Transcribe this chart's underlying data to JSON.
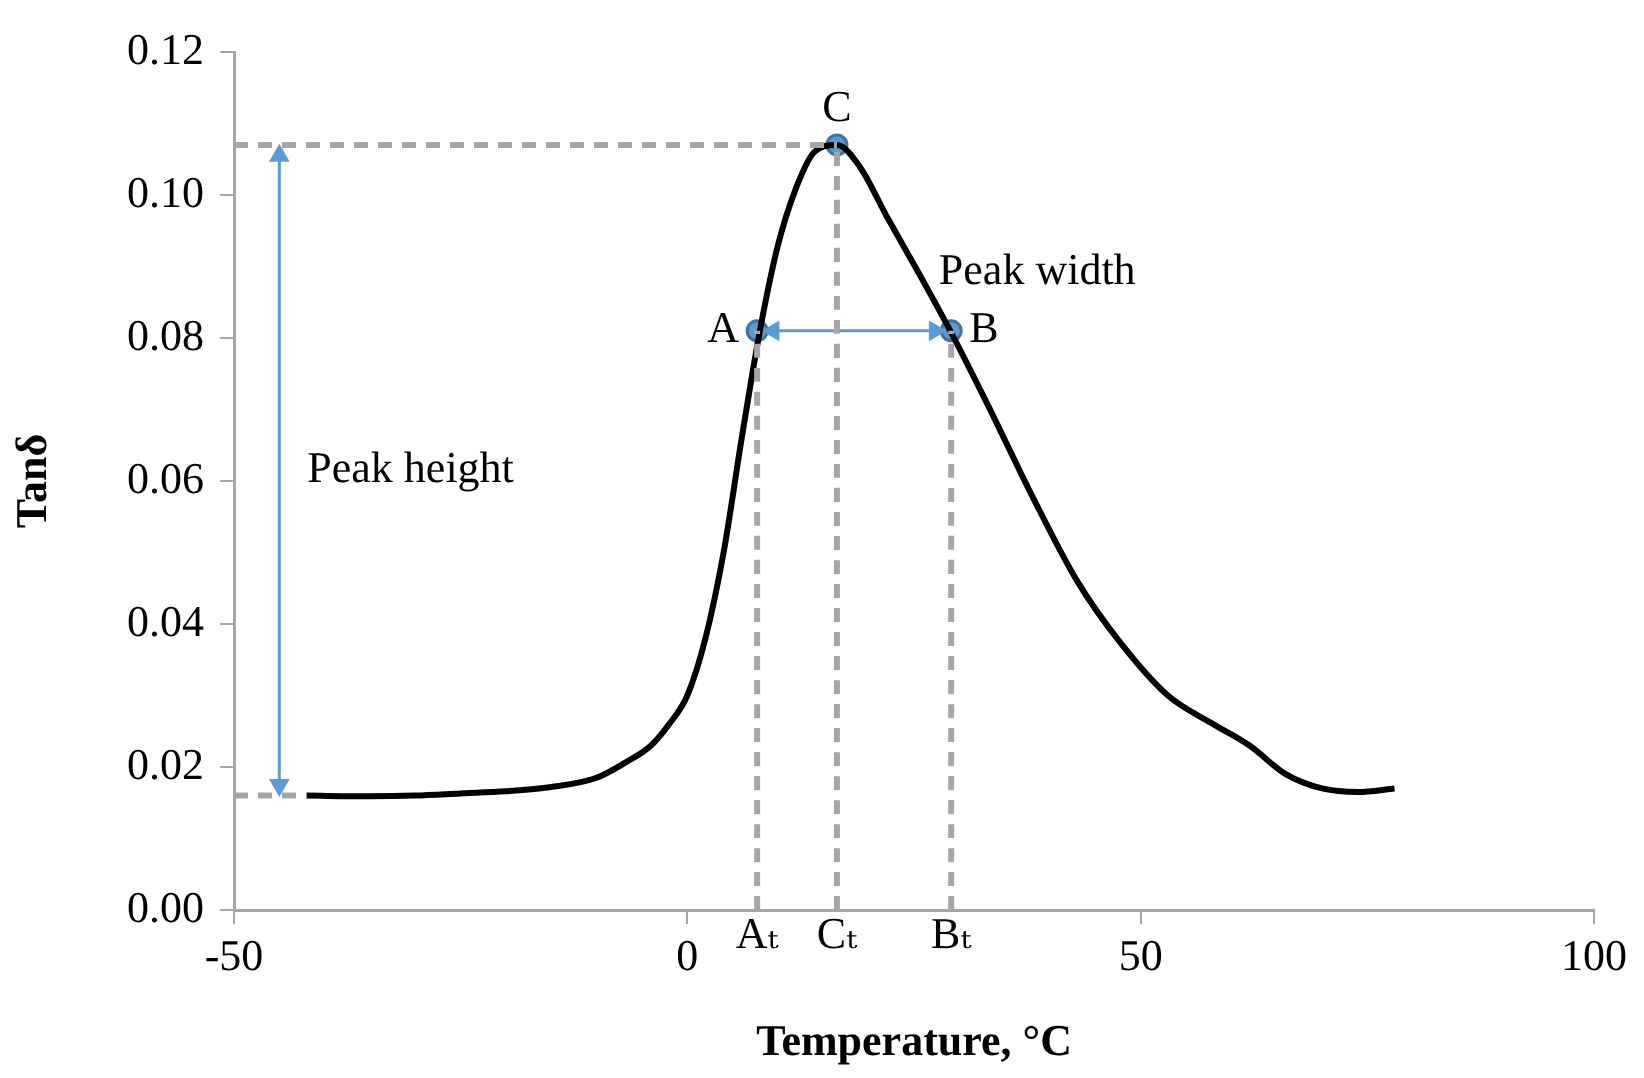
{
  "chart_data": {
    "type": "line",
    "xlabel": "Temperature, °C",
    "ylabel": "Tanδ",
    "xlim": [
      -50,
      100
    ],
    "xticks": [
      -50,
      0,
      50,
      100
    ],
    "ylim": [
      0,
      0.12
    ],
    "yticks": [
      {
        "value": 0,
        "label": "0.00"
      },
      {
        "value": 0.02,
        "label": "0.02"
      },
      {
        "value": 0.04,
        "label": "0.04"
      },
      {
        "value": 0.06,
        "label": "0.06"
      },
      {
        "value": 0.08,
        "label": "0.08"
      },
      {
        "value": 0.1,
        "label": "0.10"
      },
      {
        "value": 0.12,
        "label": "0.12"
      }
    ],
    "grid": false,
    "legend": false,
    "series": [
      {
        "type": "line",
        "color": "#a6a6a6",
        "line_style": "dashed",
        "marker": "none",
        "x": [
          7.7,
          7.7
        ],
        "values": [
          0,
          0.081
        ]
      },
      {
        "type": "line",
        "color": "#a6a6a6",
        "line_style": "dashed",
        "marker": "none",
        "x": [
          16.5,
          16.5
        ],
        "values": [
          0,
          0.107
        ]
      },
      {
        "type": "line",
        "color": "#a6a6a6",
        "line_style": "dashed",
        "marker": "none",
        "x": [
          29.1,
          29.1
        ],
        "values": [
          0,
          0.081
        ]
      },
      {
        "type": "line",
        "color": "#a6a6a6",
        "line_style": "dashed",
        "marker": "none",
        "x": [
          -50,
          16.5
        ],
        "values": [
          0.107,
          0.107
        ]
      },
      {
        "type": "line",
        "color": "#a6a6a6",
        "line_style": "dashed",
        "marker": "none",
        "x": [
          -50,
          -42
        ],
        "values": [
          0.016,
          0.016
        ]
      },
      {
        "color": "#000000",
        "line_style": "solid",
        "marker": "none",
        "x": [
          -42,
          -35,
          -30,
          -25,
          -20,
          -15,
          -10,
          -7,
          -4,
          -2,
          0,
          2,
          4,
          6,
          8,
          10,
          12,
          14,
          16.5,
          19,
          22,
          26,
          29,
          33,
          38,
          43,
          48,
          53,
          58,
          62,
          66,
          70,
          74,
          78
        ],
        "values": [
          0.016,
          0.0159,
          0.016,
          0.0163,
          0.0166,
          0.0172,
          0.0185,
          0.0205,
          0.023,
          0.026,
          0.03,
          0.038,
          0.05,
          0.066,
          0.081,
          0.093,
          0.101,
          0.106,
          0.107,
          0.104,
          0.097,
          0.088,
          0.081,
          0.071,
          0.058,
          0.046,
          0.037,
          0.03,
          0.026,
          0.023,
          0.019,
          0.017,
          0.0165,
          0.017
        ]
      },
      {
        "color": "#5b9bd5",
        "line_style": "solid",
        "marker": "triangle",
        "x": [
          -45,
          -45
        ],
        "values": [
          0.0175,
          0.1055
        ]
      },
      {
        "color": "#5b9bd5",
        "line_style": "solid",
        "marker": "triangle",
        "x": [
          9.5,
          27.3
        ],
        "values": [
          0.081,
          0.081
        ]
      },
      {
        "type": "scatter",
        "color": "#5b9bd5",
        "marker": "circle",
        "x": [
          7.7,
          29.1,
          16.5
        ],
        "values": [
          0.081,
          0.081,
          0.107
        ]
      }
    ],
    "annotations": [
      {
        "text": "A",
        "x": 7.7,
        "y": 0.081
      },
      {
        "text": "B",
        "x": 29.1,
        "y": 0.081
      },
      {
        "text": "C",
        "x": 16.5,
        "y": 0.107
      },
      "Peak height",
      "Peak width",
      {
        "text": "Aₜ",
        "x": 7.7,
        "y": 0
      },
      {
        "text": "Cₜ",
        "x": 16.5,
        "y": 0
      },
      {
        "text": "Bₜ",
        "x": 29.1,
        "y": 0
      }
    ]
  }
}
